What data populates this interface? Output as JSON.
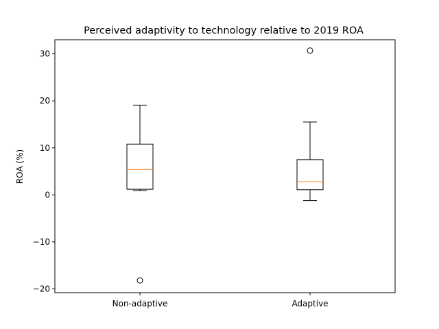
{
  "chart_data": {
    "type": "box",
    "title": "Perceived adaptivity to technology relative to 2019 ROA",
    "xlabel": "",
    "ylabel": "ROA (%)",
    "ylim": [
      -20.8,
      33.0
    ],
    "yticks": [
      -20,
      -10,
      0,
      10,
      20,
      30
    ],
    "categories": [
      "Non-adaptive",
      "Adaptive"
    ],
    "boxes": [
      {
        "category": "Non-adaptive",
        "whisker_low": 0.9,
        "q1": 1.2,
        "median": 5.4,
        "q3": 10.8,
        "whisker_high": 19.1,
        "outliers": [
          -18.2
        ]
      },
      {
        "category": "Adaptive",
        "whisker_low": -1.2,
        "q1": 1.1,
        "median": 2.8,
        "q3": 7.5,
        "whisker_high": 15.5,
        "outliers": [
          30.7
        ]
      }
    ],
    "grid": false,
    "colors": {
      "box": "#000000",
      "median": "#ff7f0e",
      "background": "#ffffff"
    }
  }
}
